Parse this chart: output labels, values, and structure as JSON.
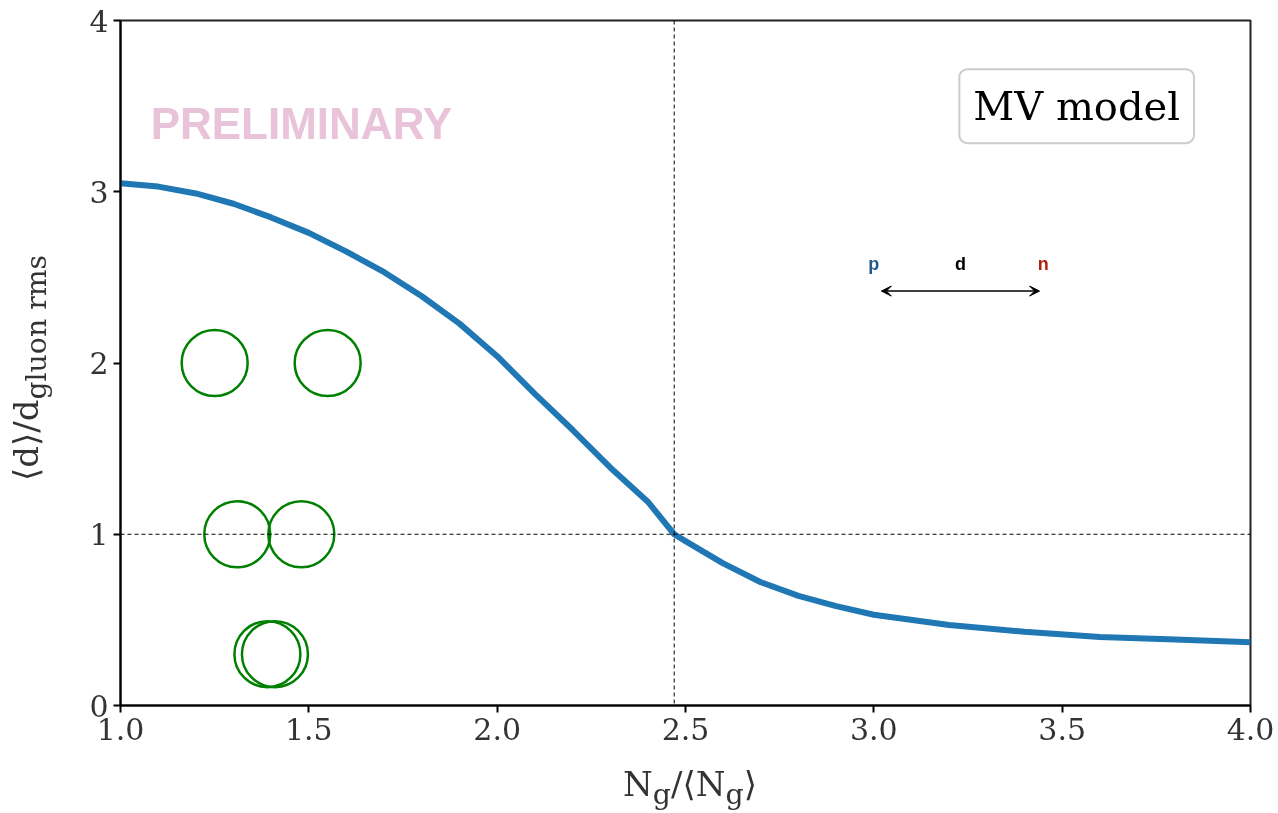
{
  "chart_data": {
    "type": "line",
    "xlabel": "N$_{g}$/⟨N$_{g}$⟩",
    "ylabel": "⟨d⟩/d$_{gluon rms}$",
    "x": [
      1.0,
      1.1,
      1.2,
      1.3,
      1.4,
      1.5,
      1.6,
      1.7,
      1.8,
      1.9,
      2.0,
      2.1,
      2.2,
      2.3,
      2.4,
      2.47,
      2.5,
      2.6,
      2.7,
      2.8,
      2.9,
      3.0,
      3.2,
      3.4,
      3.6,
      3.8,
      4.0
    ],
    "series": [
      {
        "color": "#1f77b4",
        "values": [
          3.05,
          3.03,
          2.99,
          2.93,
          2.85,
          2.76,
          2.65,
          2.53,
          2.39,
          2.23,
          2.04,
          1.82,
          1.61,
          1.39,
          1.19,
          1.0,
          0.96,
          0.83,
          0.72,
          0.64,
          0.58,
          0.53,
          0.47,
          0.43,
          0.4,
          0.385,
          0.37
        ]
      }
    ],
    "xlim": [
      1.0,
      4.0
    ],
    "ylim": [
      0,
      4
    ],
    "xticks": [
      {
        "value": 1,
        "label": "1.0"
      },
      1.5,
      {
        "value": 2,
        "label": "2.0"
      },
      2.5,
      {
        "value": 3,
        "label": "3.0"
      },
      3.5,
      {
        "value": 4,
        "label": "4.0"
      }
    ],
    "yticks": [
      0,
      1,
      2,
      3,
      4
    ],
    "ref_lines": [
      {
        "axis": "x",
        "value": 2.47,
        "line_style": "dashed",
        "color": "#000000"
      },
      {
        "axis": "y",
        "value": 1,
        "line_style": "dashed",
        "color": "#000000"
      }
    ],
    "annotations": [
      "PRELIMINARY",
      "MV model",
      "p",
      "d",
      "n"
    ],
    "grid": false,
    "line_style": "solid"
  }
}
